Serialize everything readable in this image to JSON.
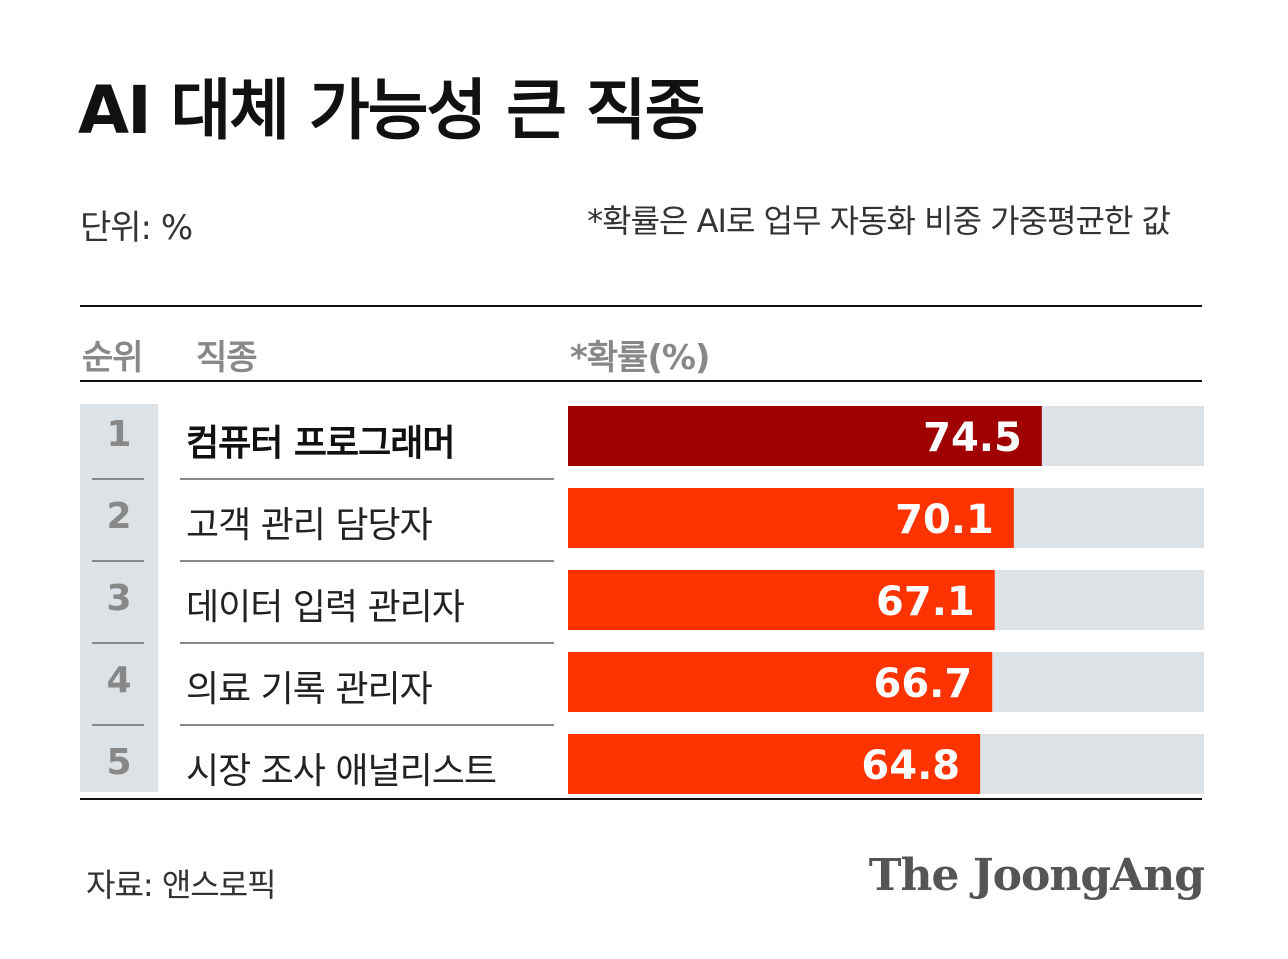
{
  "title": "AI 대체 가능성 큰 직종",
  "unit_label": "단위: %",
  "note": "*확률은 AI로 업무 자동화 비중 가중평균한 값",
  "table_headers": {
    "rank": "순위",
    "job": "직종",
    "prob": "*확률(%)"
  },
  "source": "자료: 앤스로픽",
  "brand": "The JoongAng",
  "colors": {
    "highlight": "#a00000",
    "bar": "#ff3300",
    "track": "#dde2e6",
    "label": "#ffffff"
  },
  "chart_data": {
    "type": "bar",
    "orientation": "horizontal",
    "title": "AI 대체 가능성 큰 직종",
    "ylabel": "*확률(%)",
    "xlim": [
      0,
      100
    ],
    "ranks": [
      "1",
      "2",
      "3",
      "4",
      "5"
    ],
    "categories": [
      "컴퓨터 프로그래머",
      "고객 관리 담당자",
      "데이터 입력 관리자",
      "의료 기록 관리자",
      "시장 조사 애널리스트"
    ],
    "values": [
      74.5,
      70.1,
      67.1,
      66.7,
      64.8
    ],
    "value_labels": [
      "74.5",
      "70.1",
      "67.1",
      "66.7",
      "64.8"
    ],
    "grid": false,
    "legend": "none"
  }
}
